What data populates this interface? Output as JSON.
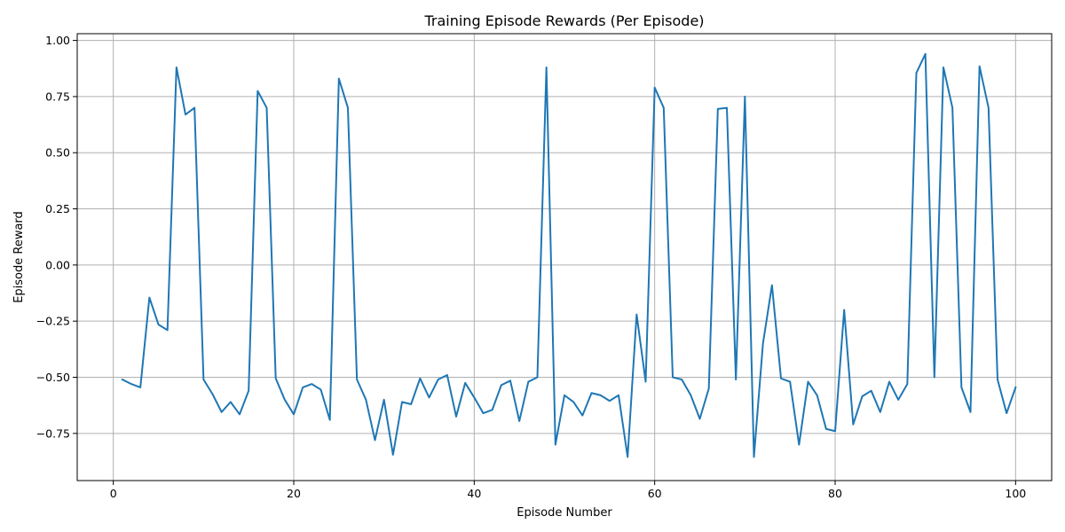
{
  "chart_data": {
    "type": "line",
    "title": "Training Episode Rewards (Per Episode)",
    "xlabel": "Episode Number",
    "ylabel": "Episode Reward",
    "xlim": [
      -4,
      104
    ],
    "ylim": [
      -0.96,
      1.03
    ],
    "xticks": [
      0,
      20,
      40,
      60,
      80,
      100
    ],
    "yticks": [
      -0.75,
      -0.5,
      -0.25,
      0.0,
      0.25,
      0.5,
      0.75,
      1.0
    ],
    "xtick_labels": [
      "0",
      "20",
      "40",
      "60",
      "80",
      "100"
    ],
    "ytick_labels": [
      "−0.75",
      "−0.50",
      "−0.25",
      "0.00",
      "0.25",
      "0.50",
      "0.75",
      "1.00"
    ],
    "grid": true,
    "line_color": "#1f77b4",
    "series": [
      {
        "x": [
          1,
          2,
          3,
          4,
          5,
          6,
          7,
          8,
          9,
          10,
          11,
          12,
          13,
          14,
          15,
          16,
          17,
          18,
          19,
          20,
          21,
          22,
          23,
          24,
          25,
          26,
          27,
          28,
          29,
          30,
          31,
          32,
          33,
          34,
          35,
          36,
          37,
          38,
          39,
          40,
          41,
          42,
          43,
          44,
          45,
          46,
          47,
          48,
          49,
          50,
          51,
          52,
          53,
          54,
          55,
          56,
          57,
          58,
          59,
          60,
          61,
          62,
          63,
          64,
          65,
          66,
          67,
          68,
          69,
          70,
          71,
          72,
          73,
          74,
          75,
          76,
          77,
          78,
          79,
          80,
          81,
          82,
          83,
          84,
          85,
          86,
          87,
          88,
          89,
          90,
          91,
          92,
          93,
          94,
          95,
          96,
          97,
          98,
          99,
          100
        ],
        "values": [
          -0.51,
          -0.53,
          -0.545,
          -0.145,
          -0.265,
          -0.29,
          0.88,
          0.67,
          0.7,
          -0.51,
          -0.575,
          -0.655,
          -0.61,
          -0.665,
          -0.56,
          0.775,
          0.7,
          -0.505,
          -0.6,
          -0.665,
          -0.545,
          -0.53,
          -0.555,
          -0.69,
          0.83,
          0.7,
          -0.51,
          -0.6,
          -0.78,
          -0.6,
          -0.845,
          -0.61,
          -0.62,
          -0.505,
          -0.59,
          -0.51,
          -0.49,
          -0.675,
          -0.525,
          -0.59,
          -0.66,
          -0.645,
          -0.535,
          -0.515,
          -0.695,
          -0.52,
          -0.5,
          0.88,
          -0.8,
          -0.58,
          -0.61,
          -0.67,
          -0.57,
          -0.58,
          -0.605,
          -0.58,
          -0.855,
          -0.22,
          -0.52,
          0.79,
          0.7,
          -0.5,
          -0.51,
          -0.58,
          -0.685,
          -0.55,
          0.695,
          0.7,
          -0.51,
          0.75,
          -0.855,
          -0.35,
          -0.09,
          -0.505,
          -0.52,
          -0.8,
          -0.52,
          -0.58,
          -0.73,
          -0.74,
          -0.2,
          -0.71,
          -0.585,
          -0.56,
          -0.655,
          -0.52,
          -0.6,
          -0.53,
          0.855,
          0.94,
          -0.5,
          0.88,
          0.7,
          -0.545,
          -0.655,
          0.885,
          0.7,
          -0.51,
          -0.66,
          -0.545
        ]
      }
    ]
  }
}
